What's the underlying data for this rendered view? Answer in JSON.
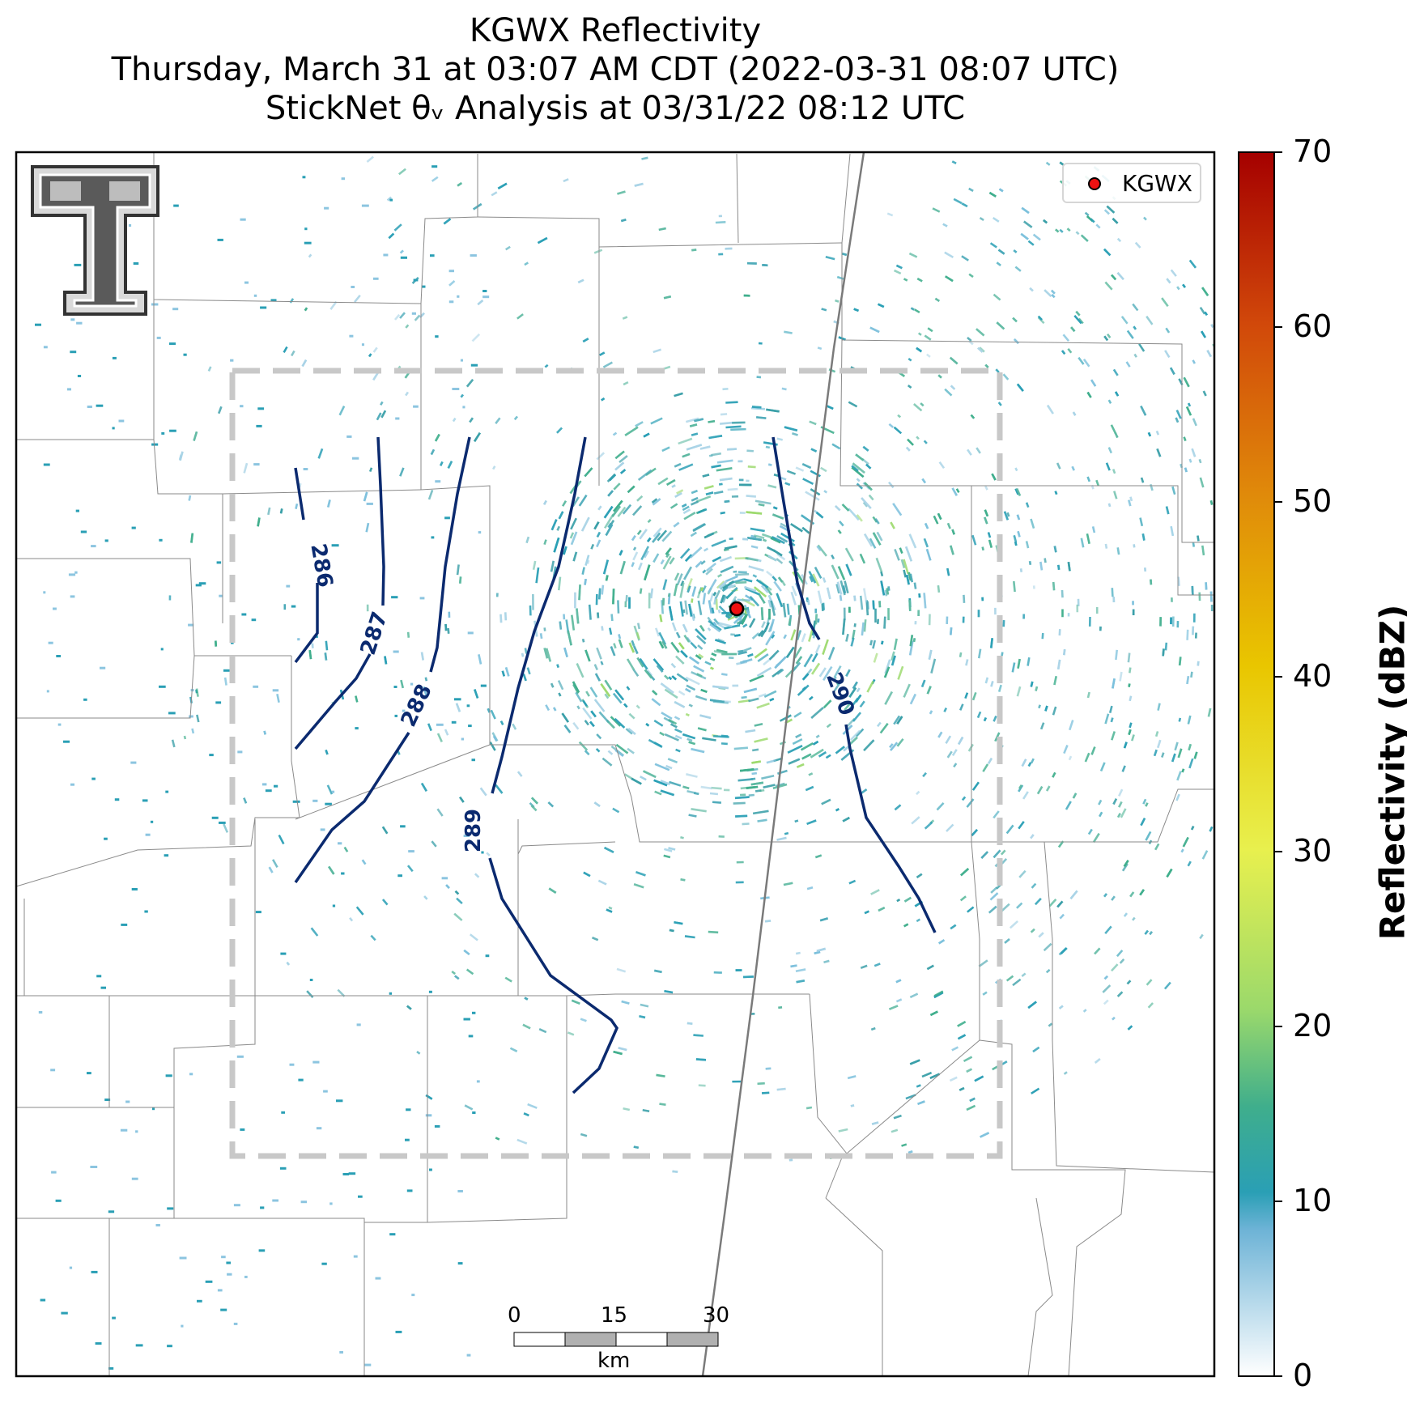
{
  "title": {
    "line1": "KGWX Reflectivity",
    "line2": "Thursday, March 31 at 03:07 AM CDT (2022-03-31 08:07 UTC)",
    "line3": "StickNet θᵥ Analysis at 03/31/22 08:12 UTC"
  },
  "legend": {
    "label": "KGWX",
    "marker_color": "#ee1111"
  },
  "radar_site": {
    "name": "KGWX"
  },
  "colorbar": {
    "title": "Reflectivity (dBZ)",
    "min": 0,
    "max": 70,
    "ticks": [
      "0",
      "10",
      "20",
      "30",
      "40",
      "50",
      "60",
      "70"
    ],
    "colors": [
      "#ffffff",
      "#6db3d6",
      "#2a9fb5",
      "#3fae8c",
      "#9bd96b",
      "#e8f04e",
      "#e9c600",
      "#e08a0a",
      "#d1480a",
      "#a50000"
    ]
  },
  "contours": {
    "color": "#0b2a6f",
    "levels": [
      "286",
      "287",
      "288",
      "289",
      "290"
    ]
  },
  "scale_bar": {
    "labels": [
      "0",
      "15",
      "30"
    ],
    "unit": "km"
  },
  "logo": {
    "name": "Texas Tech Double T"
  }
}
